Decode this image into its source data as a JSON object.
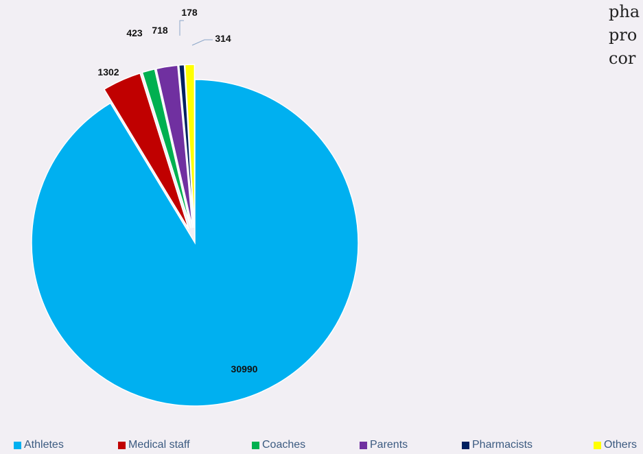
{
  "side_text": [
    "pha",
    "pro",
    "cor"
  ],
  "chart_data": {
    "type": "pie",
    "title": "",
    "slices": [
      {
        "name": "Athletes",
        "value": 30990,
        "color": "#00b0f0"
      },
      {
        "name": "Medical staff",
        "value": 1302,
        "color": "#c00000"
      },
      {
        "name": "Coaches",
        "value": 423,
        "color": "#00b050"
      },
      {
        "name": "Parents",
        "value": 718,
        "color": "#7030a0"
      },
      {
        "name": "Pharmacists",
        "value": 178,
        "color": "#002060"
      },
      {
        "name": "Others",
        "value": 314,
        "color": "#ffff00"
      }
    ],
    "legend_position": "bottom",
    "exploded": true
  }
}
